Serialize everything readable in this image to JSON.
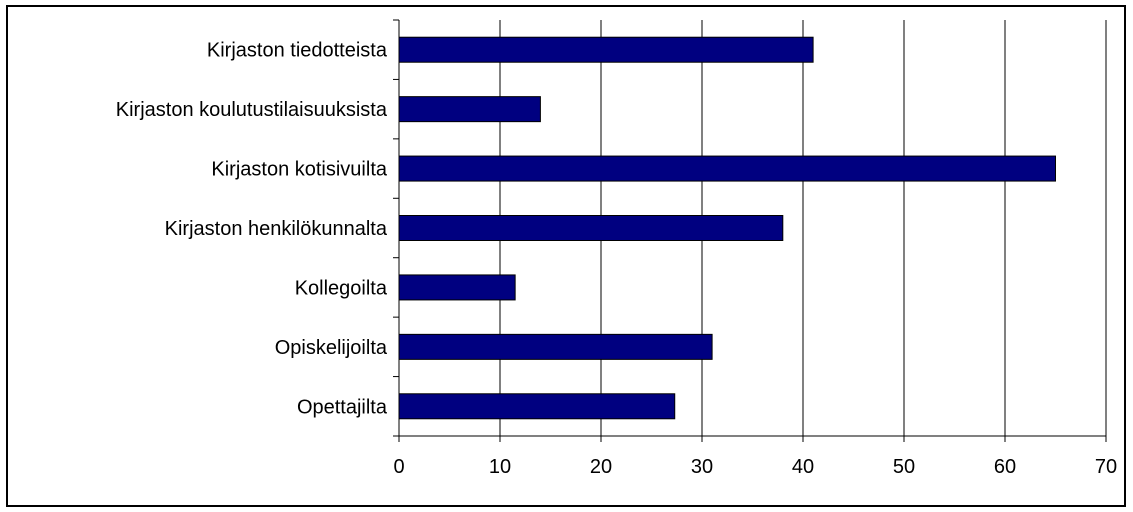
{
  "chart_data": {
    "type": "bar",
    "orientation": "horizontal",
    "title": "",
    "xlabel": "",
    "ylabel": "",
    "categories": [
      "Kirjaston tiedotteista",
      "Kirjaston koulutustilaisuuksista",
      "Kirjaston kotisivuilta",
      "Kirjaston henkilökunnalta",
      "Kollegoilta",
      "Opiskelijoilta",
      "Opettajilta"
    ],
    "values": [
      41,
      14,
      65,
      38,
      11.5,
      31,
      27.3
    ],
    "xlim": [
      0,
      70
    ],
    "x_ticks": [
      "0",
      "10",
      "20",
      "30",
      "40",
      "50",
      "60",
      "70"
    ],
    "grid": "vertical",
    "legend": "none",
    "colors": {
      "bar_fill": "#000080",
      "bar_stroke": "#000000",
      "grid": "#000000"
    }
  }
}
